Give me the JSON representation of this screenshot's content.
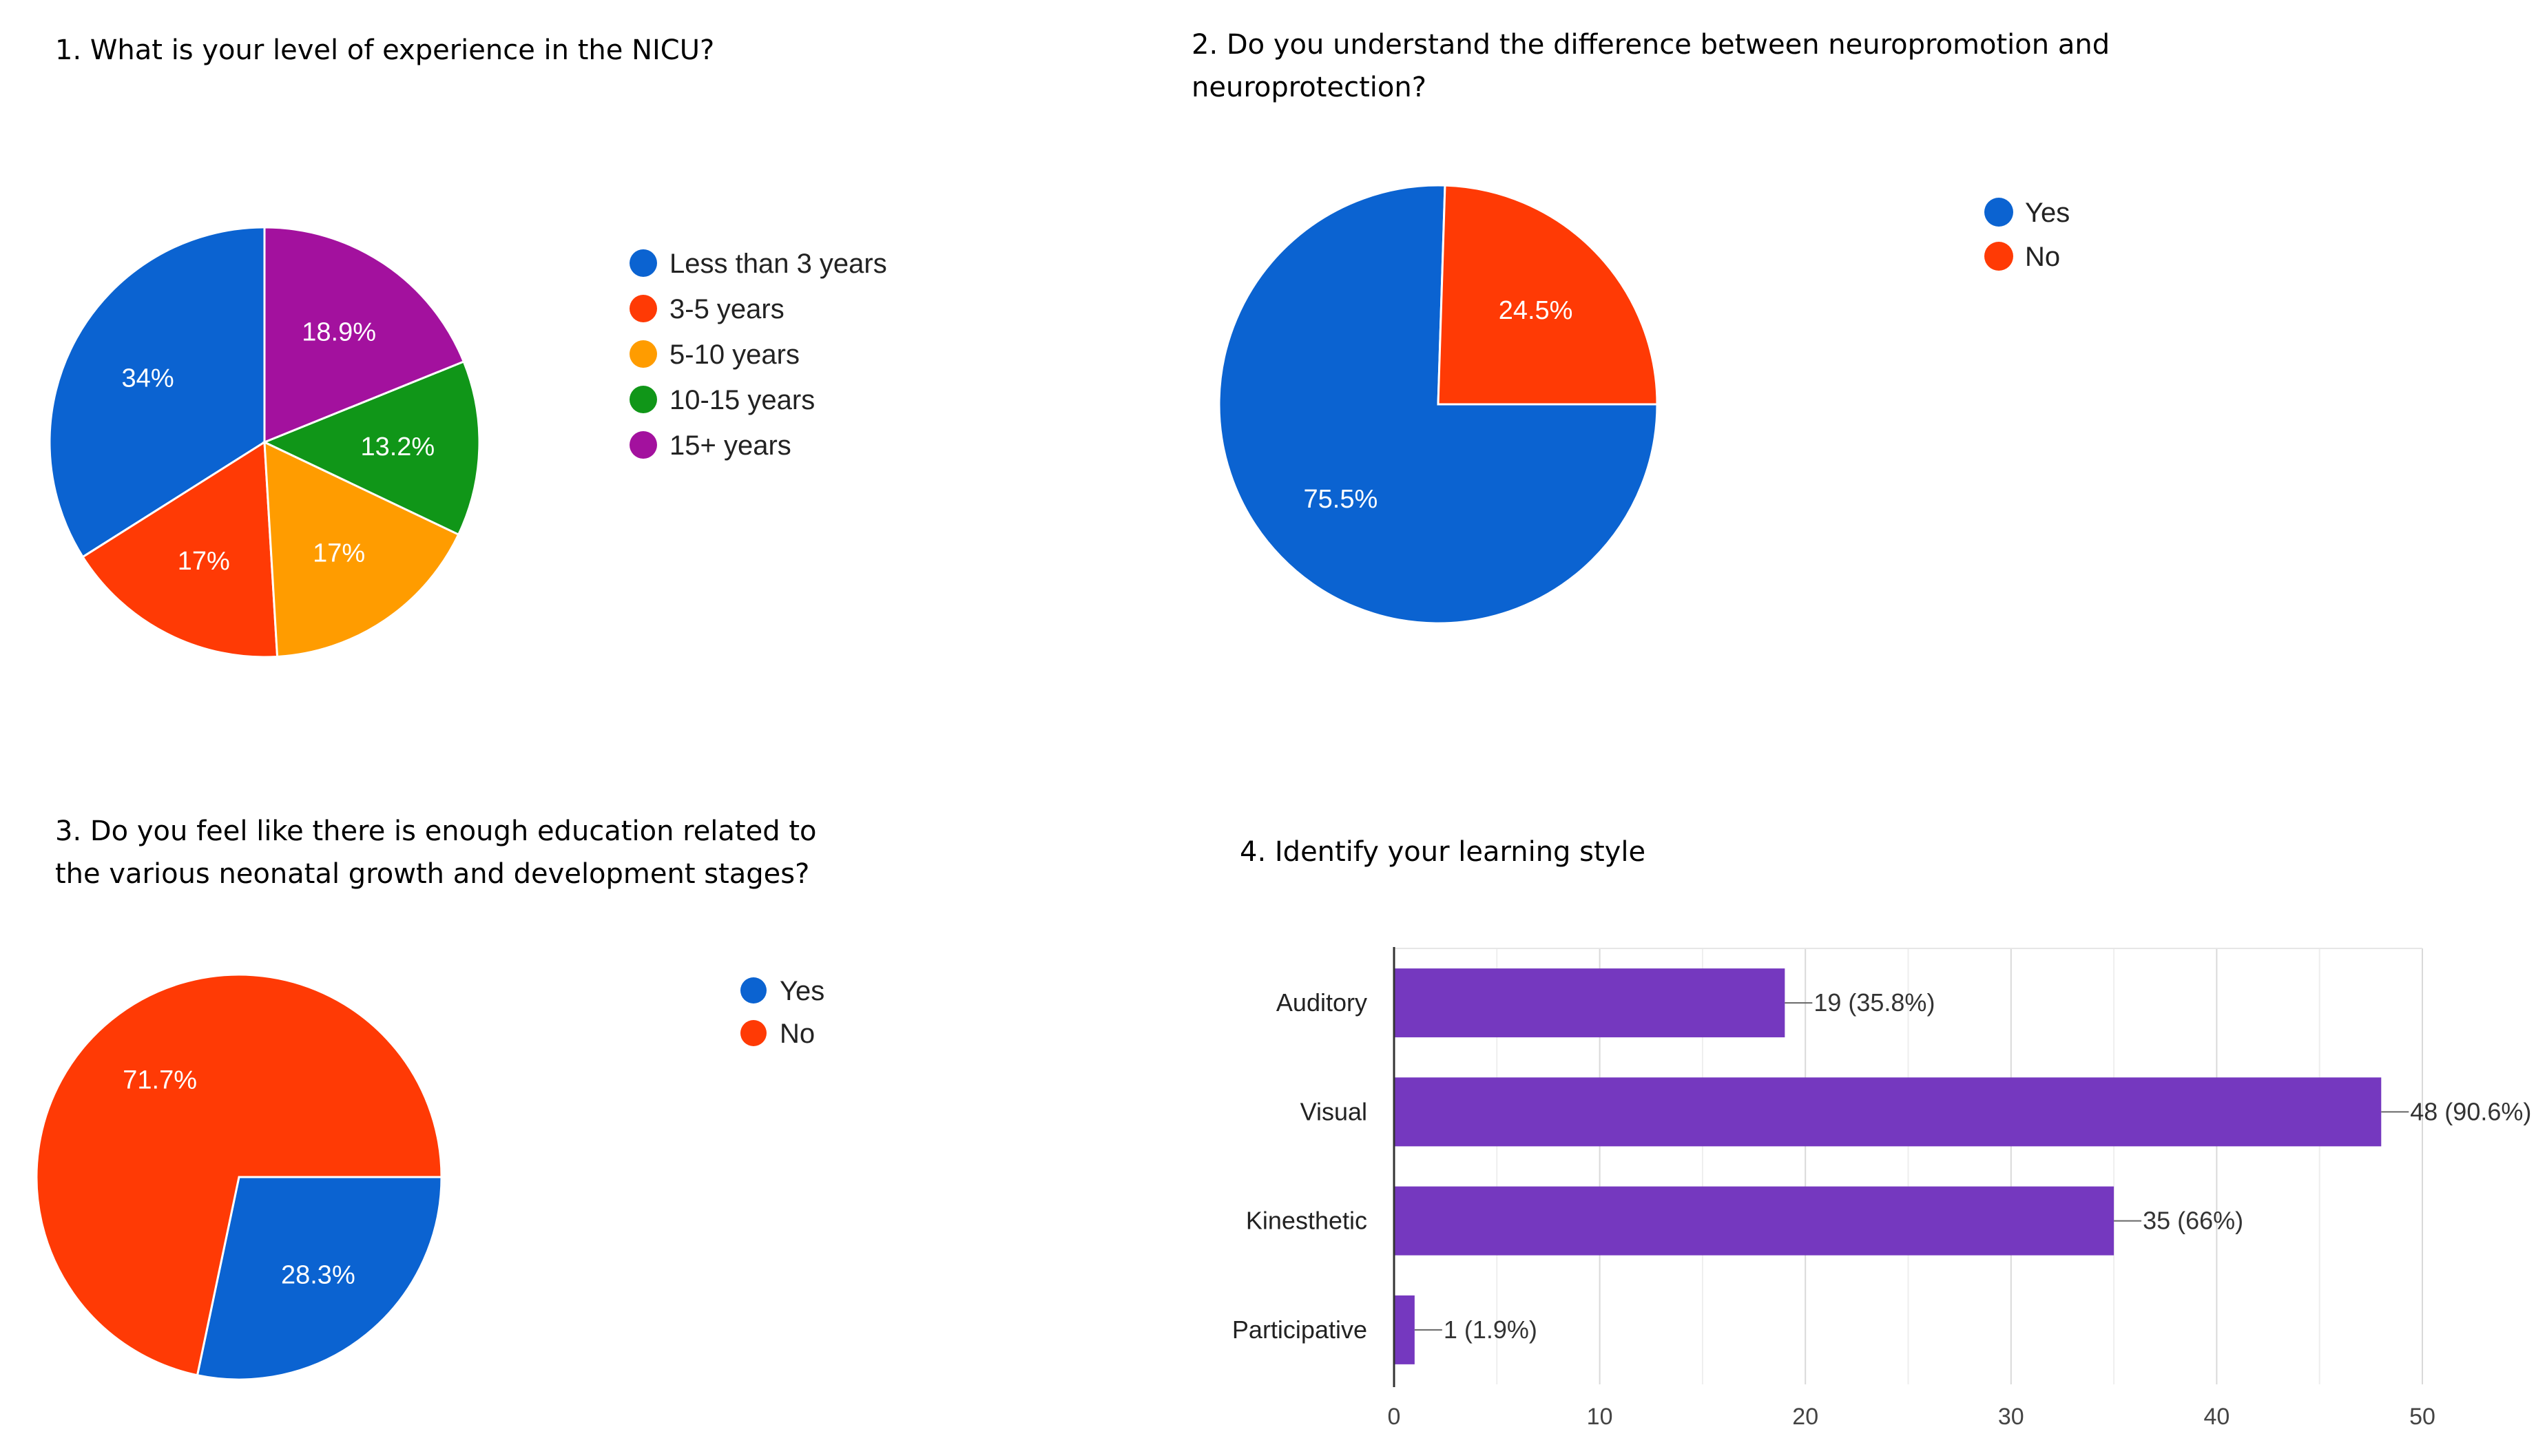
{
  "chart_data": [
    {
      "type": "pie",
      "title_lines": [
        "1. What is your level of experience in the NICU?"
      ],
      "categories": [
        "Less than 3 years",
        "3-5 years",
        "5-10 years",
        "10-15 years",
        "15+ years"
      ],
      "values": [
        34,
        17,
        17,
        13.2,
        18.9
      ],
      "labels": [
        "34%",
        "17%",
        "17%",
        "13.2%",
        "18.9%"
      ],
      "colors": [
        "#0b63d1",
        "#ff3a05",
        "#ff9c00",
        "#109618",
        "#a3119e"
      ],
      "legend_position": "right"
    },
    {
      "type": "pie",
      "title_lines": [
        "2. Do you understand the difference between  neuropromotion and",
        "neuroprotection?"
      ],
      "categories": [
        "Yes",
        "No"
      ],
      "values": [
        75.5,
        24.5
      ],
      "labels": [
        "75.5%",
        "24.5%"
      ],
      "colors": [
        "#0b63d1",
        "#ff3a05"
      ],
      "legend_position": "right"
    },
    {
      "type": "pie",
      "title_lines": [
        "3. Do you feel like there is enough education related to",
        "the various neonatal growth and development  stages?"
      ],
      "categories": [
        "Yes",
        "No"
      ],
      "values": [
        28.3,
        71.7
      ],
      "labels": [
        "28.3%",
        "71.7%"
      ],
      "colors": [
        "#0b63d1",
        "#ff3a05"
      ],
      "legend_position": "right"
    },
    {
      "type": "bar",
      "orientation": "horizontal",
      "title_lines": [
        "4. Identify your learning style"
      ],
      "categories": [
        "Auditory",
        "Visual",
        "Kinesthetic",
        "Participative"
      ],
      "values": [
        19,
        48,
        35,
        1
      ],
      "value_labels": [
        "19 (35.8%)",
        "48 (90.6%)",
        "35 (66%)",
        "1 (1.9%)"
      ],
      "xlim": [
        0,
        50
      ],
      "xticks": [
        0,
        10,
        20,
        30,
        40,
        50
      ],
      "bar_color": "#7538bf",
      "grid": true
    }
  ]
}
